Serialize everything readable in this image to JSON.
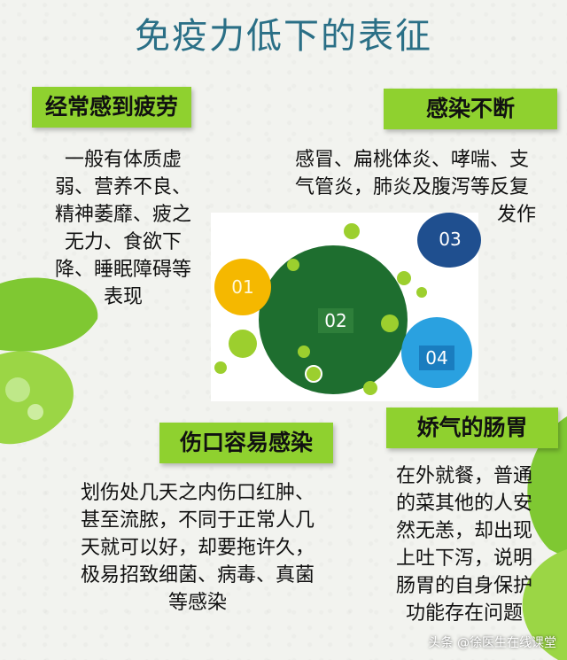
{
  "title": "免疫力低下的表征",
  "sections": {
    "s1": {
      "heading": "经常感到疲劳",
      "lines": [
        "一般有体质虚",
        "弱、营养不良、",
        "精神萎靡、疲之",
        "无力、食欲下",
        "降、睡眠障碍等",
        "表现"
      ]
    },
    "s2": {
      "heading": "感染不断",
      "lines": [
        "感冒、扁桃体炎、哮喘、支",
        "气管炎，肺炎及腹泻等反复",
        "发作"
      ]
    },
    "s3": {
      "heading": "伤口容易感染",
      "lines": [
        "划伤处几天之内伤口红肿、",
        "甚至流脓，不同于正常人几",
        "天就可以好，却要拖许久，",
        "极易招致细菌、病毒、真菌",
        "等感染"
      ]
    },
    "s4": {
      "heading": "娇气的肠胃",
      "lines": [
        "在外就餐，普通",
        "的菜其他的人安",
        "然无恙，却出现",
        "上吐下泻，说明",
        "肠胃的自身保护",
        "功能存在问题"
      ]
    }
  },
  "diagram": {
    "n1": "01",
    "n2": "02",
    "n3": "03",
    "n4": "04",
    "colors": {
      "c1": "#f5b800",
      "c2": "#1e6e2f",
      "c3": "#1f4f8f",
      "c4": "#2aa1e0",
      "dots": "#9ccf2e"
    }
  },
  "watermark": "头条 @徐医生在线课堂"
}
